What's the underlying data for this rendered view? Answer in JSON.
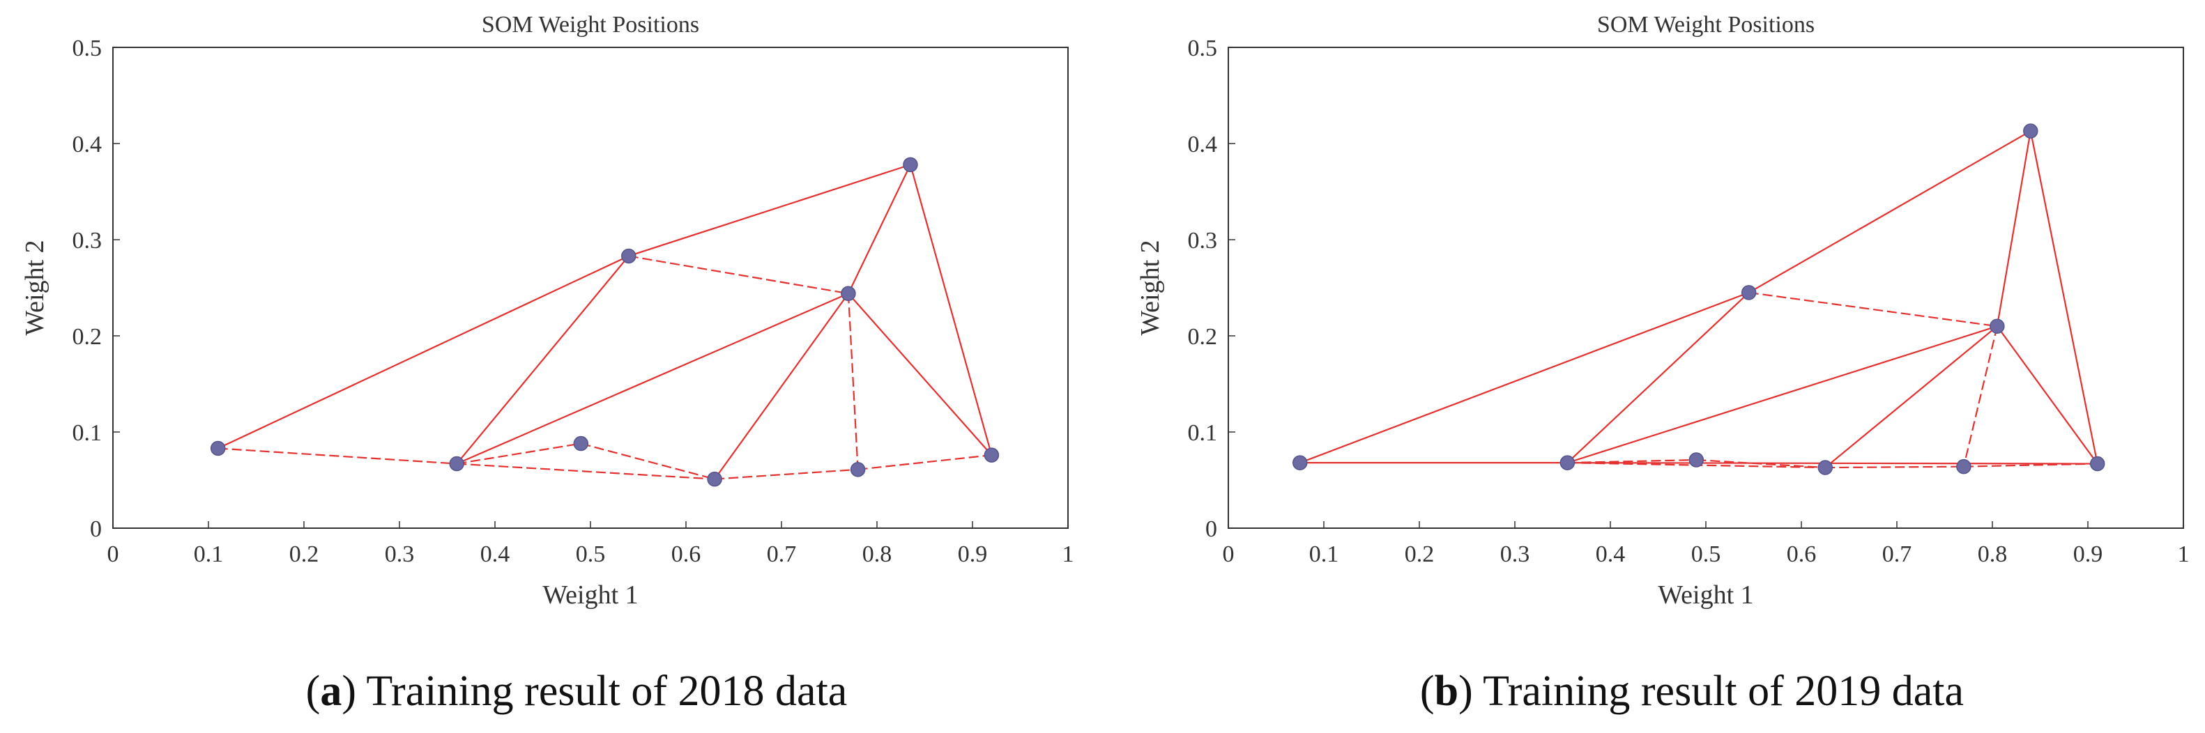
{
  "chart_data": [
    {
      "type": "scatter",
      "title": "SOM Weight Positions",
      "xlabel": "Weight 1",
      "ylabel": "Weight 2",
      "xlim": [
        0,
        1
      ],
      "ylim": [
        0,
        0.5
      ],
      "xticks": [
        0,
        0.1,
        0.2,
        0.3,
        0.4,
        0.5,
        0.6,
        0.7,
        0.8,
        0.9,
        1
      ],
      "xtick_labels": [
        "0",
        "0.1",
        "0.2",
        "0.3",
        "0.4",
        "0.5",
        "0.6",
        "0.7",
        "0.8",
        "0.9",
        "1"
      ],
      "yticks": [
        0,
        0.1,
        0.2,
        0.3,
        0.4,
        0.5
      ],
      "ytick_labels": [
        "0",
        "0.1",
        "0.2",
        "0.3",
        "0.4",
        "0.5"
      ],
      "nodes": [
        {
          "x": 0.11,
          "y": 0.083
        },
        {
          "x": 0.36,
          "y": 0.067
        },
        {
          "x": 0.49,
          "y": 0.088
        },
        {
          "x": 0.63,
          "y": 0.051
        },
        {
          "x": 0.78,
          "y": 0.061
        },
        {
          "x": 0.92,
          "y": 0.076
        },
        {
          "x": 0.54,
          "y": 0.283
        },
        {
          "x": 0.77,
          "y": 0.244
        },
        {
          "x": 0.835,
          "y": 0.378
        }
      ],
      "edges_solid": [
        [
          0,
          6
        ],
        [
          6,
          8
        ],
        [
          1,
          6
        ],
        [
          1,
          7
        ],
        [
          3,
          7
        ],
        [
          7,
          8
        ],
        [
          8,
          5
        ],
        [
          7,
          5
        ]
      ],
      "edges_dashed": [
        [
          0,
          1
        ],
        [
          1,
          2
        ],
        [
          2,
          3
        ],
        [
          1,
          3
        ],
        [
          3,
          4
        ],
        [
          4,
          5
        ],
        [
          6,
          7
        ],
        [
          7,
          4
        ]
      ],
      "caption_letter": "a",
      "caption_text": "Training result of 2018 data"
    },
    {
      "type": "scatter",
      "title": "SOM Weight Positions",
      "xlabel": "Weight 1",
      "ylabel": "Weight 2",
      "xlim": [
        0,
        1
      ],
      "ylim": [
        0,
        0.5
      ],
      "xticks": [
        0,
        0.1,
        0.2,
        0.3,
        0.4,
        0.5,
        0.6,
        0.7,
        0.8,
        0.9,
        1
      ],
      "xtick_labels": [
        "0",
        "0.1",
        "0.2",
        "0.3",
        "0.4",
        "0.5",
        "0.6",
        "0.7",
        "0.8",
        "0.9",
        "1"
      ],
      "yticks": [
        0,
        0.1,
        0.2,
        0.3,
        0.4,
        0.5
      ],
      "ytick_labels": [
        "0",
        "0.1",
        "0.2",
        "0.3",
        "0.4",
        "0.5"
      ],
      "nodes": [
        {
          "x": 0.075,
          "y": 0.068
        },
        {
          "x": 0.355,
          "y": 0.068
        },
        {
          "x": 0.49,
          "y": 0.071
        },
        {
          "x": 0.625,
          "y": 0.063
        },
        {
          "x": 0.77,
          "y": 0.064
        },
        {
          "x": 0.91,
          "y": 0.067
        },
        {
          "x": 0.545,
          "y": 0.245
        },
        {
          "x": 0.805,
          "y": 0.21
        },
        {
          "x": 0.84,
          "y": 0.413
        }
      ],
      "edges_solid": [
        [
          0,
          6
        ],
        [
          6,
          8
        ],
        [
          1,
          6
        ],
        [
          1,
          7
        ],
        [
          3,
          7
        ],
        [
          7,
          8
        ],
        [
          8,
          5
        ],
        [
          7,
          5
        ],
        [
          0,
          1
        ],
        [
          1,
          5
        ]
      ],
      "edges_dashed": [
        [
          1,
          2
        ],
        [
          2,
          3
        ],
        [
          1,
          3
        ],
        [
          3,
          4
        ],
        [
          4,
          5
        ],
        [
          6,
          7
        ],
        [
          7,
          4
        ]
      ],
      "caption_letter": "b",
      "caption_text": "Training result of 2019 data"
    }
  ]
}
